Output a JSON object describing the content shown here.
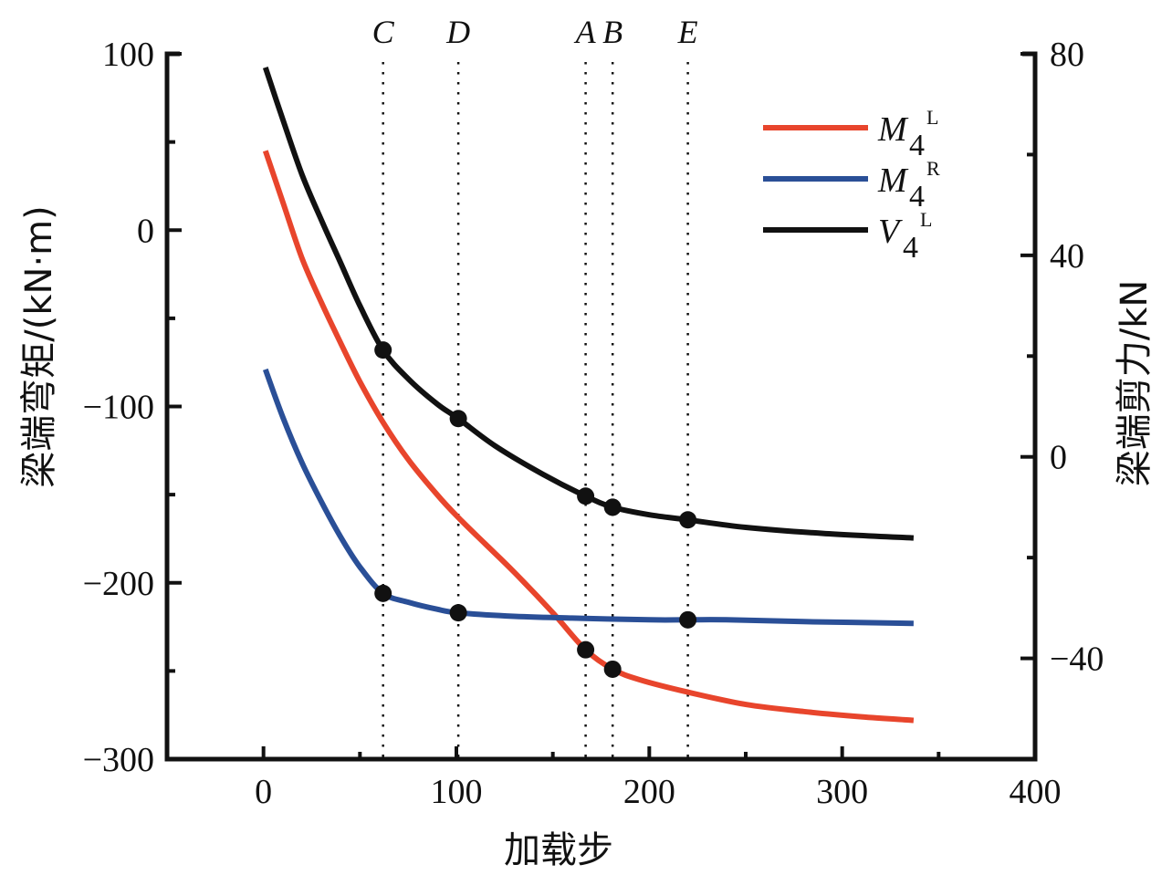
{
  "chart_data": {
    "type": "line",
    "title": "",
    "xlabel": "加载步",
    "ylabel_left": "梁端弯矩/(kN·m)",
    "ylabel_right": "梁端剪力/kN",
    "xlim": [
      -50,
      400
    ],
    "ylim_left": [
      -300,
      100
    ],
    "ylim_right": [
      -60,
      80
    ],
    "x_ticks": [
      0,
      100,
      200,
      300,
      400
    ],
    "x_tick_labels": [
      "0",
      "100",
      "200",
      "300",
      "400"
    ],
    "y_left_ticks": [
      100,
      0,
      -100,
      -200,
      -300
    ],
    "y_left_tick_labels": [
      "100",
      "0",
      "−100",
      "−200",
      "−300"
    ],
    "y_right_ticks": [
      80,
      40,
      0,
      -40
    ],
    "y_right_tick_labels": [
      "80",
      "40",
      "0",
      "−40"
    ],
    "grid": false,
    "legend_position": "top-right",
    "stage_markers": [
      {
        "label": "C",
        "x": 62
      },
      {
        "label": "D",
        "x": 101
      },
      {
        "label": "A",
        "x": 167
      },
      {
        "label": "B",
        "x": 181
      },
      {
        "label": "E",
        "x": 220
      }
    ],
    "series": [
      {
        "name": "M4L",
        "legend_main": "M",
        "legend_sub": "4",
        "legend_sup": "L",
        "axis": "left",
        "color": "#e8452c",
        "x": [
          1,
          10,
          20,
          30,
          40,
          50,
          62,
          75,
          90,
          101,
          115,
          130,
          150,
          167,
          181,
          195,
          220,
          250,
          280,
          310,
          337
        ],
        "y": [
          45,
          16,
          -16,
          -41,
          -64,
          -86,
          -109,
          -130,
          -150,
          -163,
          -178,
          -194,
          -217,
          -238,
          -249,
          -255,
          -262,
          -269,
          -273,
          -276,
          -278
        ],
        "markers": [
          {
            "x": 167,
            "y": -238
          },
          {
            "x": 181,
            "y": -249
          }
        ]
      },
      {
        "name": "M4R",
        "legend_main": "M",
        "legend_sub": "4",
        "legend_sup": "R",
        "axis": "left",
        "color": "#2a4f97",
        "x": [
          1,
          10,
          20,
          30,
          40,
          50,
          62,
          75,
          90,
          101,
          130,
          160,
          200,
          220,
          240,
          280,
          337
        ],
        "y": [
          -79,
          -106,
          -132,
          -154,
          -174,
          -191,
          -206,
          -211,
          -215,
          -217,
          -219,
          -220,
          -221,
          -221,
          -221,
          -222,
          -223
        ],
        "markers": [
          {
            "x": 62,
            "y": -206
          },
          {
            "x": 101,
            "y": -217
          },
          {
            "x": 220,
            "y": -221
          }
        ]
      },
      {
        "name": "V4L",
        "legend_main": "V",
        "legend_sub": "4",
        "legend_sup": "L",
        "axis": "right",
        "color": "#111111",
        "x": [
          1,
          10,
          20,
          30,
          40,
          50,
          62,
          75,
          90,
          101,
          120,
          145,
          167,
          181,
          200,
          220,
          250,
          290,
          337
        ],
        "y": [
          77.3,
          67,
          56,
          47,
          38.5,
          30,
          21.2,
          15.5,
          10.5,
          7.6,
          2.2,
          -3.5,
          -7.8,
          -10.0,
          -11.5,
          -12.5,
          -14.0,
          -15.2,
          -16.1
        ],
        "markers": [
          {
            "x": 62,
            "y": 21.2
          },
          {
            "x": 101,
            "y": 7.6
          },
          {
            "x": 167,
            "y": -7.8
          },
          {
            "x": 181,
            "y": -10.0
          },
          {
            "x": 220,
            "y": -12.5
          }
        ]
      }
    ]
  }
}
